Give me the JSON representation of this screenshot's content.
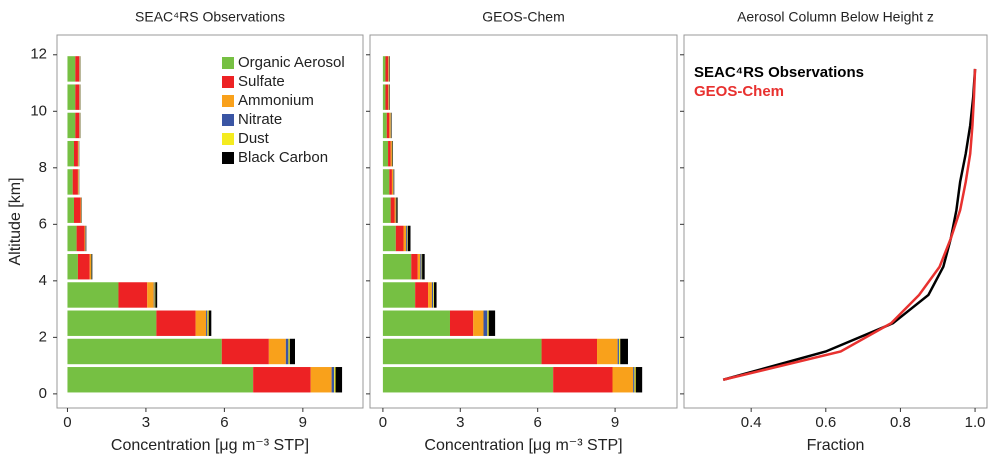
{
  "chart_data": [
    {
      "type": "bar",
      "orientation": "horizontal",
      "stacked": true,
      "title": "SEAC⁴RS Observations",
      "xlabel": "Concentration [μg m⁻³ STP]",
      "ylabel": "Altitude [km]",
      "y": [
        0.5,
        1.5,
        2.5,
        3.5,
        4.5,
        5.5,
        6.5,
        7.5,
        8.5,
        9.5,
        10.5,
        11.5
      ],
      "series": [
        {
          "name": "Organic Aerosol",
          "color": "#76c043",
          "values": [
            7.1,
            5.9,
            3.4,
            1.95,
            0.4,
            0.35,
            0.25,
            0.2,
            0.25,
            0.3,
            0.3,
            0.3
          ]
        },
        {
          "name": "Sulfate",
          "color": "#ed2224",
          "values": [
            2.2,
            1.8,
            1.5,
            1.1,
            0.45,
            0.3,
            0.25,
            0.2,
            0.15,
            0.15,
            0.15,
            0.15
          ]
        },
        {
          "name": "Ammonium",
          "color": "#f9a11b",
          "values": [
            0.8,
            0.65,
            0.4,
            0.25,
            0.05,
            0.03,
            0.02,
            0.02,
            0.02,
            0.02,
            0.02,
            0.02
          ]
        },
        {
          "name": "Nitrate",
          "color": "#3a55a4",
          "values": [
            0.1,
            0.1,
            0.05,
            0.03,
            0.01,
            0.01,
            0.01,
            0.01,
            0.01,
            0.01,
            0.01,
            0.01
          ]
        },
        {
          "name": "Dust",
          "color": "#f4eb1f",
          "values": [
            0.05,
            0.05,
            0.05,
            0.03,
            0.01,
            0.01,
            0.01,
            0.01,
            0.01,
            0.01,
            0.01,
            0.01
          ]
        },
        {
          "name": "Black Carbon",
          "color": "#000000",
          "values": [
            0.25,
            0.2,
            0.1,
            0.07,
            0.03,
            0.02,
            0.01,
            0.01,
            0.01,
            0.01,
            0.01,
            0.01
          ]
        }
      ],
      "xlim": [
        -0.4,
        11.3
      ],
      "xticks": [
        0,
        3,
        6,
        9
      ],
      "ylim": [
        -0.5,
        12.7
      ],
      "yticks": [
        0,
        2,
        4,
        6,
        8,
        10,
        12
      ],
      "show_ytick_labels": true,
      "legend": "top-right"
    },
    {
      "type": "bar",
      "orientation": "horizontal",
      "stacked": true,
      "title": "GEOS-Chem",
      "xlabel": "Concentration [μg m⁻³ STP]",
      "y": [
        0.5,
        1.5,
        2.5,
        3.5,
        4.5,
        5.5,
        6.5,
        7.5,
        8.5,
        9.5,
        10.5,
        11.5
      ],
      "series": [
        {
          "color": "#76c043",
          "values": [
            6.6,
            6.15,
            2.6,
            1.25,
            1.1,
            0.5,
            0.3,
            0.25,
            0.2,
            0.15,
            0.1,
            0.1
          ]
        },
        {
          "color": "#ed2224",
          "values": [
            2.3,
            2.15,
            0.9,
            0.5,
            0.25,
            0.3,
            0.15,
            0.1,
            0.1,
            0.1,
            0.1,
            0.1
          ]
        },
        {
          "color": "#f9a11b",
          "values": [
            0.8,
            0.8,
            0.4,
            0.15,
            0.1,
            0.1,
            0.05,
            0.05,
            0.05,
            0.05,
            0.03,
            0.03
          ]
        },
        {
          "color": "#3a55a4",
          "values": [
            0.05,
            0.05,
            0.15,
            0.05,
            0.05,
            0.05,
            0.01,
            0.01,
            0.01,
            0.01,
            0.01,
            0.01
          ]
        },
        {
          "color": "#f4eb1f",
          "values": [
            0.05,
            0.05,
            0.05,
            0.03,
            0.02,
            0.02,
            0.01,
            0.01,
            0.01,
            0.01,
            0.01,
            0.01
          ]
        },
        {
          "color": "#000000",
          "values": [
            0.25,
            0.3,
            0.25,
            0.1,
            0.1,
            0.1,
            0.05,
            0.02,
            0.02,
            0.02,
            0.02,
            0.02
          ]
        }
      ],
      "xlim": [
        -0.5,
        11.4
      ],
      "xticks": [
        0,
        3,
        6,
        9
      ],
      "ylim": [
        -0.5,
        12.7
      ],
      "yticks": [
        0,
        2,
        4,
        6,
        8,
        10,
        12
      ],
      "show_ytick_labels": false
    },
    {
      "type": "line",
      "title": "Aerosol Column Below Height z",
      "xlabel": "Fraction",
      "y": [
        0.5,
        1.5,
        2.5,
        3.5,
        4.5,
        5.5,
        6.5,
        7.5,
        8.5,
        9.5,
        10.5,
        11.5
      ],
      "series": [
        {
          "name": "SEAC⁴RS Observations",
          "color": "#000000",
          "values": [
            0.325,
            0.6,
            0.78,
            0.875,
            0.915,
            0.935,
            0.95,
            0.96,
            0.975,
            0.987,
            0.995,
            1.0
          ]
        },
        {
          "name": "GEOS-Chem",
          "color": "#e8312f",
          "values": [
            0.325,
            0.64,
            0.775,
            0.85,
            0.905,
            0.935,
            0.96,
            0.975,
            0.987,
            0.993,
            0.997,
            1.0
          ]
        }
      ],
      "xlim": [
        0.22,
        1.032
      ],
      "xticks": [
        0.4,
        0.6,
        0.8,
        {
          "value": 1,
          "label": "1.0"
        }
      ],
      "ylim": [
        -0.5,
        12.7
      ],
      "yticks": [
        0,
        2,
        4,
        6,
        8,
        10,
        12
      ],
      "show_ytick_labels": false,
      "legend": "top-left"
    }
  ]
}
